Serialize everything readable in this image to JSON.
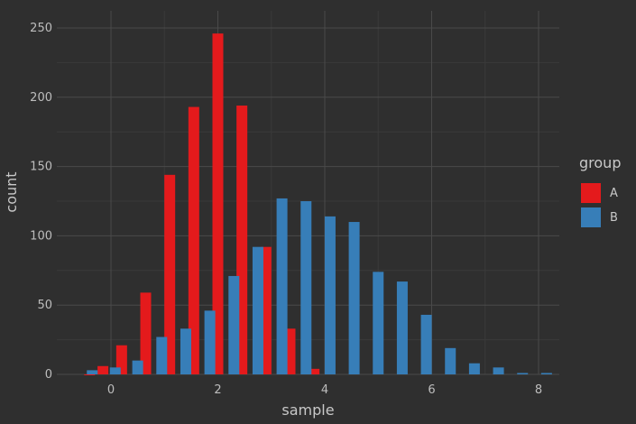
{
  "chart_data": {
    "type": "bar",
    "title": "",
    "xlabel": "sample",
    "ylabel": "count",
    "xlim": [
      -1,
      8.4
    ],
    "ylim": [
      0,
      255
    ],
    "x_ticks": [
      0,
      2,
      4,
      6,
      8
    ],
    "y_ticks": [
      0,
      50,
      100,
      150,
      200,
      250
    ],
    "grid": true,
    "legend": {
      "title": "group",
      "placement": "right"
    },
    "series": [
      {
        "name": "A",
        "color": "#e41a1c",
        "x": [
          -0.4,
          -0.15,
          0.2,
          0.65,
          1.1,
          1.55,
          2.0,
          2.45,
          2.9,
          3.35,
          3.8
        ],
        "values": [
          0,
          6,
          21,
          59,
          144,
          193,
          246,
          194,
          92,
          33,
          4
        ]
      },
      {
        "name": "B",
        "color": "#377eb8",
        "x": [
          -0.35,
          0.08,
          0.5,
          0.95,
          1.4,
          1.85,
          2.3,
          2.75,
          3.2,
          3.65,
          4.1,
          4.55,
          5.0,
          5.45,
          5.9,
          6.35,
          6.8,
          7.25,
          7.7,
          8.15
        ],
        "values": [
          3,
          5,
          10,
          27,
          33,
          46,
          71,
          92,
          127,
          125,
          114,
          110,
          74,
          67,
          43,
          19,
          8,
          5,
          1,
          1
        ]
      }
    ]
  }
}
